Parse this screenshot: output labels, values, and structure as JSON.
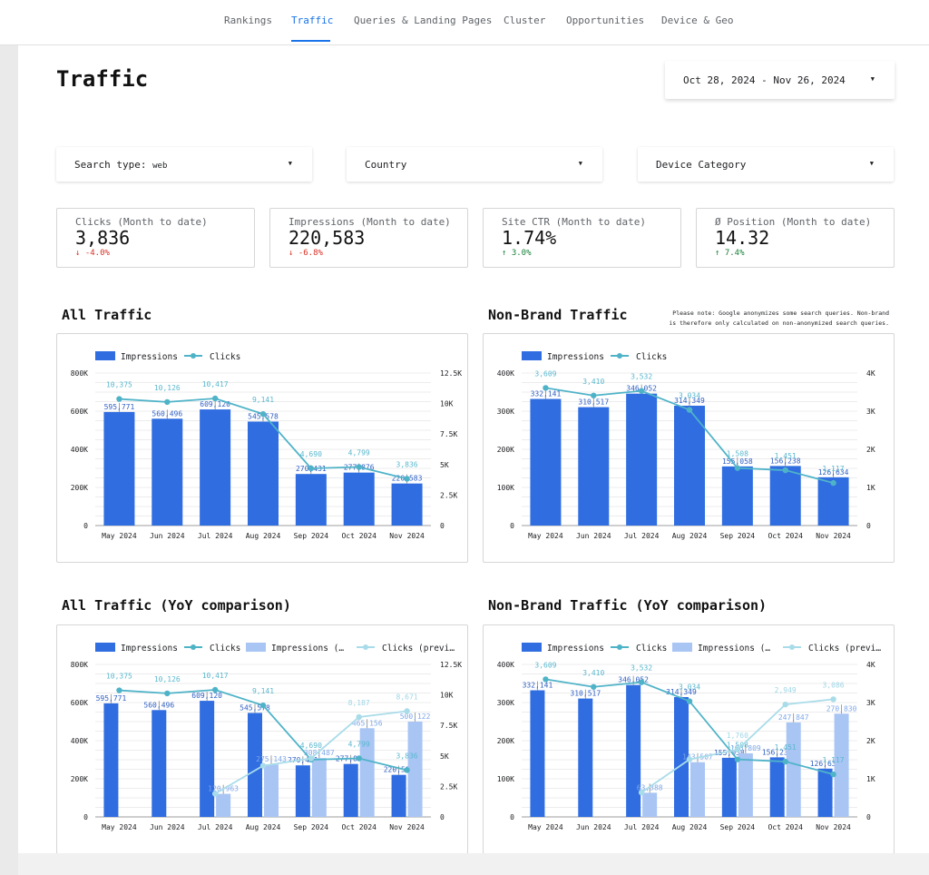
{
  "nav": {
    "tabs": [
      {
        "label": "Rankings",
        "active": false
      },
      {
        "label": "Traffic",
        "active": true
      },
      {
        "label": "Queries & Landing Pages",
        "active": false
      },
      {
        "label": "Cluster",
        "active": false
      },
      {
        "label": "Opportunities",
        "active": false
      },
      {
        "label": "Device & Geo",
        "active": false
      }
    ]
  },
  "page": {
    "title": "Traffic",
    "date_range": "Oct 28, 2024 - Nov 26, 2024"
  },
  "filters": {
    "search_type_label": "Search type:",
    "search_type_value": "web",
    "country": "Country",
    "device": "Device Category"
  },
  "kpis": [
    {
      "label": "Clicks (Month to date)",
      "value": "3,836",
      "delta": "-4.0%",
      "arrow": "↓",
      "trend": "neg"
    },
    {
      "label": "Impressions (Month to date)",
      "value": "220,583",
      "delta": "-6.8%",
      "arrow": "↓",
      "trend": "neg"
    },
    {
      "label": "Site CTR (Month to date)",
      "value": "1.74%",
      "delta": "3.0%",
      "arrow": "↑",
      "trend": "pos"
    },
    {
      "label": "Ø Position (Month to date)",
      "value": "14.32",
      "delta": "7.4%",
      "arrow": "↑",
      "trend": "pos"
    }
  ],
  "sections": {
    "all_traffic": "All Traffic",
    "nonbrand_traffic": "Non-Brand Traffic",
    "all_yoy": "All Traffic (YoY comparison)",
    "nonbrand_yoy": "Non-Brand Traffic (YoY comparison)",
    "note": "Please note: Google anonymizes some search queries. Non-brand is therefore only calculated on non-anonymized search queries."
  },
  "colors": {
    "impressions": "#2f6de1",
    "clicks": "#4fb3c8",
    "impressions_prev": "#a8c5f4",
    "clicks_prev": "#a9dce9"
  },
  "chart_data": [
    {
      "type": "bar",
      "categories": [
        "May 2024",
        "Jun 2024",
        "Jul 2024",
        "Aug 2024",
        "Sep 2024",
        "Oct 2024",
        "Nov 2024"
      ],
      "series": [
        {
          "name": "Impressions",
          "type": "bar",
          "axis": "left",
          "values": [
            595771,
            560496,
            609120,
            545578,
            270431,
            277876,
            220583
          ],
          "labels": [
            "595,771",
            "560,496",
            "609,120",
            "545,578",
            "270,431",
            "277,876",
            "220,583"
          ]
        },
        {
          "name": "Clicks",
          "type": "line",
          "axis": "right",
          "values": [
            10375,
            10126,
            10417,
            9141,
            4690,
            4799,
            3836
          ],
          "labels": [
            "10,375",
            "10,126",
            "10,417",
            "9,141",
            "4,690",
            "4,799",
            "3,836"
          ]
        }
      ],
      "y_left": {
        "ticks": [
          "0",
          "200K",
          "400K",
          "600K",
          "800K"
        ],
        "max": 800000
      },
      "y_right": {
        "ticks": [
          "0",
          "2.5K",
          "5K",
          "7.5K",
          "10K",
          "12.5K"
        ],
        "max": 12500
      }
    },
    {
      "type": "bar",
      "categories": [
        "May 2024",
        "Jun 2024",
        "Jul 2024",
        "Aug 2024",
        "Sep 2024",
        "Oct 2024",
        "Nov 2024"
      ],
      "series": [
        {
          "name": "Impressions",
          "type": "bar",
          "axis": "left",
          "values": [
            332141,
            310517,
            346052,
            314349,
            155058,
            156238,
            126634
          ],
          "labels": [
            "332,141",
            "310,517",
            "346,052",
            "314,349",
            "155,058",
            "156,238",
            "126,634"
          ]
        },
        {
          "name": "Clicks",
          "type": "line",
          "axis": "right",
          "values": [
            3609,
            3410,
            3532,
            3034,
            1508,
            1451,
            1117
          ],
          "labels": [
            "3,609",
            "3,410",
            "3,532",
            "3,034",
            "1,508",
            "1,451",
            "1,117"
          ]
        }
      ],
      "y_left": {
        "ticks": [
          "0",
          "100K",
          "200K",
          "300K",
          "400K"
        ],
        "max": 400000
      },
      "y_right": {
        "ticks": [
          "0",
          "1K",
          "2K",
          "3K",
          "4K"
        ],
        "max": 4000
      }
    },
    {
      "type": "bar",
      "categories": [
        "May 2024",
        "Jun 2024",
        "Jul 2024",
        "Aug 2024",
        "Sep 2024",
        "Oct 2024",
        "Nov 2024"
      ],
      "series": [
        {
          "name": "Impressions",
          "type": "bar",
          "axis": "left",
          "values": [
            595771,
            560496,
            609120,
            545578,
            270431,
            277876,
            220583
          ],
          "labels": [
            "595,771",
            "560,496",
            "609,120",
            "545,578",
            "270,431",
            "277,876",
            "220,583"
          ]
        },
        {
          "name": "Clicks",
          "type": "line",
          "axis": "right",
          "values": [
            10375,
            10126,
            10417,
            9141,
            4690,
            4799,
            3836
          ],
          "labels": [
            "10,375",
            "10,126",
            "10,417",
            "9,141",
            "4,690",
            "4,799",
            "3,836"
          ]
        },
        {
          "name": "Impressions (…",
          "type": "bar",
          "axis": "left",
          "values": [
            null,
            null,
            120963,
            275143,
            308487,
            465156,
            500122
          ],
          "labels": [
            "",
            "",
            "120,963",
            "275,143",
            "308,487",
            "465,156",
            "500,122"
          ]
        },
        {
          "name": "Clicks (previ…",
          "type": "line",
          "axis": "right",
          "values": [
            null,
            null,
            1900,
            4200,
            4800,
            8187,
            8671
          ],
          "labels": [
            "",
            "",
            "",
            "",
            "",
            "8,187",
            "8,671"
          ]
        }
      ],
      "y_left": {
        "ticks": [
          "0",
          "200K",
          "400K",
          "600K",
          "800K"
        ],
        "max": 800000
      },
      "y_right": {
        "ticks": [
          "0",
          "2.5K",
          "5K",
          "7.5K",
          "10K",
          "12.5K"
        ],
        "max": 12500
      }
    },
    {
      "type": "bar",
      "categories": [
        "May 2024",
        "Jun 2024",
        "Jul 2024",
        "Aug 2024",
        "Sep 2024",
        "Oct 2024",
        "Nov 2024"
      ],
      "series": [
        {
          "name": "Impressions",
          "type": "bar",
          "axis": "left",
          "values": [
            332141,
            310517,
            346052,
            314349,
            155058,
            156238,
            126634
          ],
          "labels": [
            "332,141",
            "310,517",
            "346,052",
            "314,349",
            "155,058",
            "156,238",
            "126,634"
          ]
        },
        {
          "name": "Clicks",
          "type": "line",
          "axis": "right",
          "values": [
            3609,
            3410,
            3532,
            3034,
            1508,
            1451,
            1117
          ],
          "labels": [
            "3,609",
            "3,410",
            "3,532",
            "3,034",
            "1,508",
            "1,451",
            "1,117"
          ]
        },
        {
          "name": "Impressions (…",
          "type": "bar",
          "axis": "left",
          "values": [
            null,
            null,
            63388,
            143507,
            166809,
            247847,
            270830
          ],
          "labels": [
            "",
            "",
            "63,388",
            "143,507",
            "166,809",
            "247,847",
            "270,830"
          ]
        },
        {
          "name": "Clicks (previ…",
          "type": "line",
          "axis": "right",
          "values": [
            null,
            null,
            640,
            1510,
            1760,
            2949,
            3086
          ],
          "labels": [
            "",
            "",
            "",
            "",
            "1,760",
            "2,949",
            "3,086"
          ]
        }
      ],
      "y_left": {
        "ticks": [
          "0",
          "100K",
          "200K",
          "300K",
          "400K"
        ],
        "max": 400000
      },
      "y_right": {
        "ticks": [
          "0",
          "1K",
          "2K",
          "3K",
          "4K"
        ],
        "max": 4000
      }
    }
  ]
}
